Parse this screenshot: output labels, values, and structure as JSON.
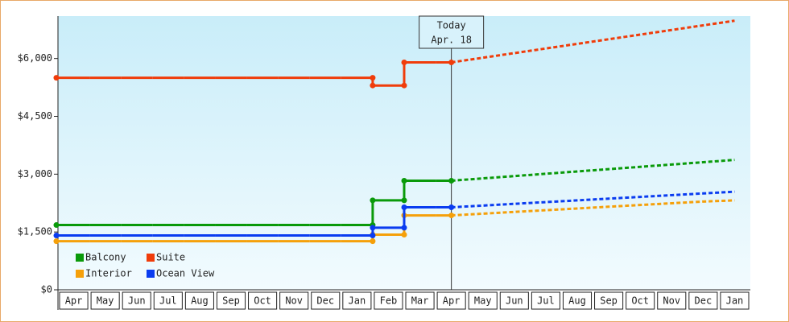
{
  "chart_data": {
    "type": "step-line",
    "categories": [
      "Apr",
      "May",
      "Jun",
      "Jul",
      "Aug",
      "Sep",
      "Oct",
      "Nov",
      "Dec",
      "Jan",
      "Feb",
      "Mar",
      "Apr",
      "May",
      "Jun",
      "Jul",
      "Aug",
      "Sep",
      "Oct",
      "Nov",
      "Dec",
      "Jan"
    ],
    "series": [
      {
        "name": "Balcony",
        "color": "#0a9a0a",
        "values": [
          1680,
          1680,
          1680,
          1680,
          1680,
          1680,
          1680,
          1680,
          1680,
          1680,
          2320,
          2830,
          2830,
          null,
          null,
          null,
          null,
          null,
          null,
          null,
          null,
          null
        ],
        "projected": [
          null,
          null,
          null,
          null,
          null,
          null,
          null,
          null,
          null,
          null,
          null,
          null,
          2830,
          2890,
          2950,
          3010,
          3070,
          3130,
          3190,
          3250,
          3310,
          3370
        ]
      },
      {
        "name": "Suite",
        "color": "#f03c0a",
        "values": [
          5500,
          5500,
          5500,
          5500,
          5500,
          5500,
          5500,
          5500,
          5500,
          5500,
          5300,
          5900,
          5900,
          null,
          null,
          null,
          null,
          null,
          null,
          null,
          null,
          null
        ],
        "projected": [
          null,
          null,
          null,
          null,
          null,
          null,
          null,
          null,
          null,
          null,
          null,
          null,
          5900,
          6020,
          6140,
          6260,
          6380,
          6500,
          6620,
          6740,
          6860,
          6980
        ]
      },
      {
        "name": "Interior",
        "color": "#f5a00a",
        "values": [
          1260,
          1260,
          1260,
          1260,
          1260,
          1260,
          1260,
          1260,
          1260,
          1260,
          1430,
          1930,
          1930,
          null,
          null,
          null,
          null,
          null,
          null,
          null,
          null,
          null
        ],
        "projected": [
          null,
          null,
          null,
          null,
          null,
          null,
          null,
          null,
          null,
          null,
          null,
          null,
          1930,
          1975,
          2020,
          2065,
          2110,
          2155,
          2200,
          2245,
          2290,
          2320
        ]
      },
      {
        "name": "Ocean View",
        "color": "#0a3cf0",
        "values": [
          1410,
          1410,
          1410,
          1410,
          1410,
          1410,
          1410,
          1410,
          1410,
          1410,
          1610,
          2140,
          2140,
          null,
          null,
          null,
          null,
          null,
          null,
          null,
          null,
          null
        ],
        "projected": [
          null,
          null,
          null,
          null,
          null,
          null,
          null,
          null,
          null,
          null,
          null,
          null,
          2140,
          2185,
          2230,
          2275,
          2320,
          2365,
          2410,
          2455,
          2500,
          2545
        ]
      }
    ],
    "annotation": [
      "Today",
      "Apr. 18"
    ],
    "ylim": [
      0,
      7100
    ],
    "yticks": [
      {
        "value": 0,
        "label": "$0"
      },
      {
        "value": 1500,
        "label": "$1,500"
      },
      {
        "value": 3000,
        "label": "$3,000"
      },
      {
        "value": 4500,
        "label": "$4,500"
      },
      {
        "value": 6000,
        "label": "$6,000"
      }
    ],
    "legend": "lower left"
  }
}
